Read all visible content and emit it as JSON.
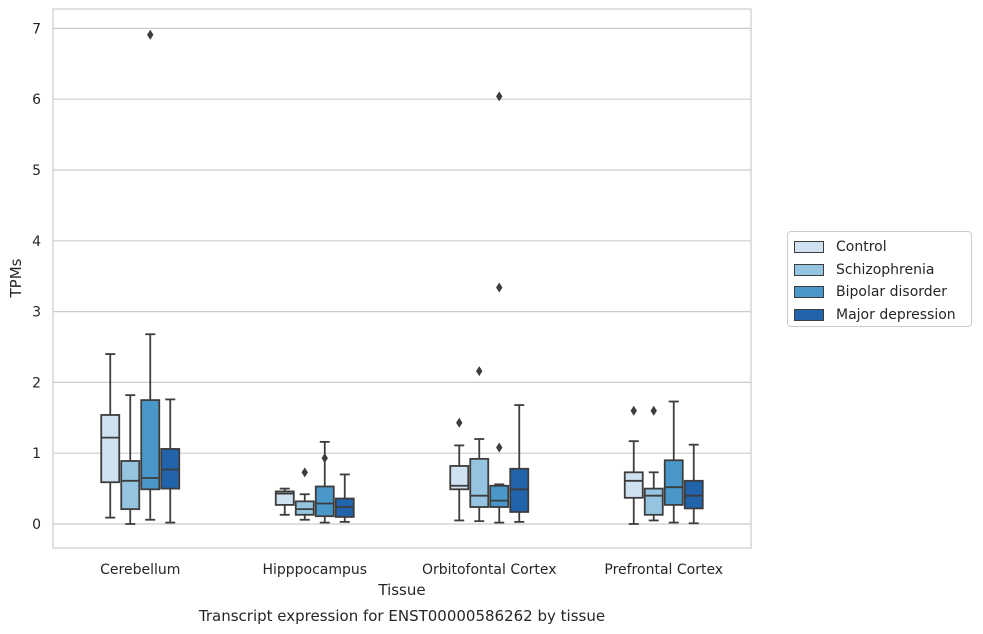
{
  "chart_data": {
    "type": "box",
    "title": "",
    "caption": "Transcript expression for ENST00000586262 by tissue",
    "xlabel": "Tissue",
    "ylabel": "TPMs",
    "ylim": [
      -0.33,
      7.3
    ],
    "yticks": [
      0,
      1,
      2,
      3,
      4,
      5,
      6,
      7
    ],
    "grid": "horizontal",
    "legend_position": "right",
    "categories": [
      "Cerebellum",
      "Hipppocampus",
      "Orbitofontal Cortex",
      "Prefrontal Cortex"
    ],
    "series": [
      {
        "name": "Control",
        "color": "#d0e1f2",
        "boxes": [
          {
            "whislo": 0.09,
            "q1": 0.59,
            "med": 1.22,
            "q3": 1.54,
            "whishi": 2.4,
            "fliers": []
          },
          {
            "whislo": 0.13,
            "q1": 0.27,
            "med": 0.43,
            "q3": 0.46,
            "whishi": 0.5,
            "fliers": []
          },
          {
            "whislo": 0.05,
            "q1": 0.49,
            "med": 0.54,
            "q3": 0.82,
            "whishi": 1.11,
            "fliers": [
              1.43
            ]
          },
          {
            "whislo": 0.0,
            "q1": 0.37,
            "med": 0.61,
            "q3": 0.73,
            "whishi": 1.17,
            "fliers": [
              1.6
            ]
          }
        ]
      },
      {
        "name": "Schizophrenia",
        "color": "#94c4df",
        "boxes": [
          {
            "whislo": 0.0,
            "q1": 0.21,
            "med": 0.61,
            "q3": 0.89,
            "whishi": 1.82,
            "fliers": []
          },
          {
            "whislo": 0.06,
            "q1": 0.13,
            "med": 0.21,
            "q3": 0.32,
            "whishi": 0.42,
            "fliers": [
              0.73
            ]
          },
          {
            "whislo": 0.04,
            "q1": 0.24,
            "med": 0.4,
            "q3": 0.92,
            "whishi": 1.2,
            "fliers": [
              2.16
            ]
          },
          {
            "whislo": 0.05,
            "q1": 0.13,
            "med": 0.4,
            "q3": 0.5,
            "whishi": 0.73,
            "fliers": [
              1.6
            ]
          }
        ]
      },
      {
        "name": "Bipolar disorder",
        "color": "#4a98c9",
        "boxes": [
          {
            "whislo": 0.06,
            "q1": 0.49,
            "med": 0.65,
            "q3": 1.75,
            "whishi": 2.68,
            "fliers": [
              6.91
            ]
          },
          {
            "whislo": 0.02,
            "q1": 0.11,
            "med": 0.29,
            "q3": 0.53,
            "whishi": 1.16,
            "fliers": [
              0.93
            ]
          },
          {
            "whislo": 0.02,
            "q1": 0.24,
            "med": 0.33,
            "q3": 0.54,
            "whishi": 0.56,
            "fliers": [
              1.08,
              3.34,
              6.04
            ]
          },
          {
            "whislo": 0.02,
            "q1": 0.27,
            "med": 0.52,
            "q3": 0.9,
            "whishi": 1.73,
            "fliers": []
          }
        ]
      },
      {
        "name": "Major depression",
        "color": "#2164ab",
        "boxes": [
          {
            "whislo": 0.02,
            "q1": 0.5,
            "med": 0.77,
            "q3": 1.06,
            "whishi": 1.76,
            "fliers": []
          },
          {
            "whislo": 0.03,
            "q1": 0.1,
            "med": 0.24,
            "q3": 0.36,
            "whishi": 0.7,
            "fliers": []
          },
          {
            "whislo": 0.03,
            "q1": 0.17,
            "med": 0.49,
            "q3": 0.78,
            "whishi": 1.68,
            "fliers": []
          },
          {
            "whislo": 0.01,
            "q1": 0.22,
            "med": 0.4,
            "q3": 0.61,
            "whishi": 1.12,
            "fliers": []
          }
        ]
      }
    ]
  }
}
